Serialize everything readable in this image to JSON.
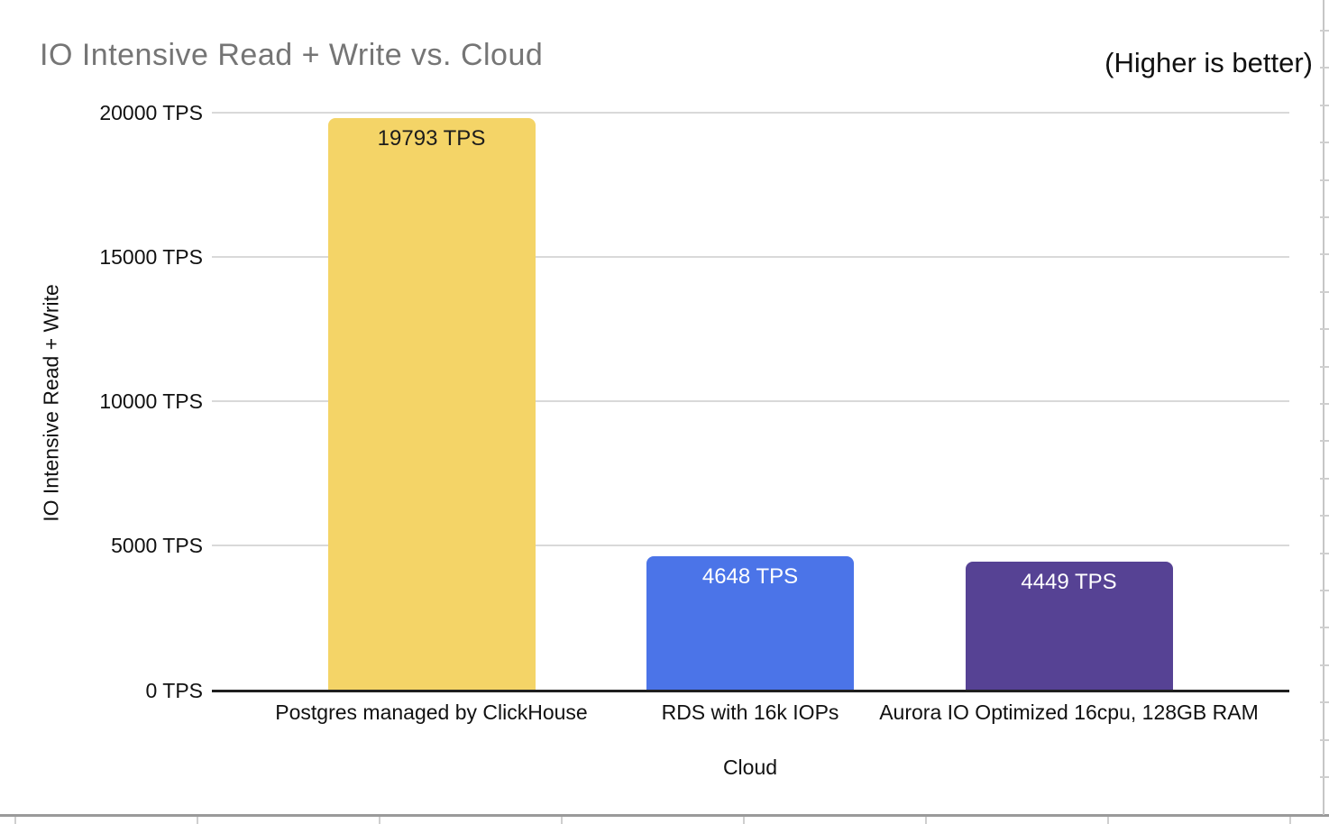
{
  "chart_data": {
    "type": "bar",
    "title": "IO Intensive Read + Write vs. Cloud",
    "annotation": "(Higher is better)",
    "xlabel": "Cloud",
    "ylabel": "IO Intensive Read + Write",
    "unit": "TPS",
    "categories": [
      "Postgres managed by ClickHouse",
      "RDS with 16k IOPs",
      "Aurora IO Optimized 16cpu, 128GB RAM"
    ],
    "values": [
      19793,
      4648,
      4449
    ],
    "bar_value_labels": [
      "19793 TPS",
      "4648 TPS",
      "4449 TPS"
    ],
    "bar_colors": [
      "#F4D467",
      "#4B74E8",
      "#564294"
    ],
    "bar_label_colors": [
      "#1c1c1c",
      "#ffffff",
      "#ffffff"
    ],
    "ylim": [
      0,
      20000
    ],
    "yticks": [
      {
        "value": 0,
        "label": "0 TPS"
      },
      {
        "value": 5000,
        "label": "5000 TPS"
      },
      {
        "value": 10000,
        "label": "10000 TPS"
      },
      {
        "value": 15000,
        "label": "15000 TPS"
      },
      {
        "value": 20000,
        "label": "20000 TPS"
      }
    ],
    "grid": true,
    "legend": false
  },
  "colors": {
    "background": "#ffffff",
    "title_text": "#757575",
    "axis_text": "#111111",
    "gridline": "#d9d9d9",
    "axis_line": "#1f1f1f",
    "sheet_frame_line": "#9a9a9a",
    "sheet_frame_tick": "#cfcfcf"
  }
}
